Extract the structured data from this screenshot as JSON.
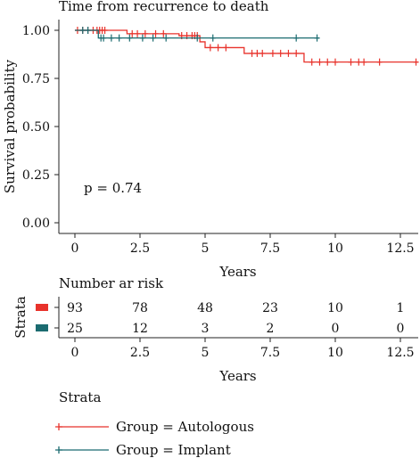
{
  "chart_data": {
    "type": "line",
    "title": "Time from recurrence to death",
    "xlabel": "Years",
    "ylabel": "Survival probability",
    "xlim": [
      -1.5,
      13.2
    ],
    "ylim": [
      -0.05,
      1.05
    ],
    "x_ticks": [
      "0",
      "2.5",
      "5",
      "7.5",
      "10",
      "12.5"
    ],
    "y_ticks": [
      "0.00",
      "0.25",
      "0.50",
      "0.75",
      "1.00"
    ],
    "pvalue_text": "p = 0.74",
    "series": [
      {
        "name": "Group = Autologous",
        "color": "#e8322b",
        "steps": [
          [
            0,
            1.0
          ],
          [
            2.0,
            0.982
          ],
          [
            4.0,
            0.972
          ],
          [
            4.8,
            0.94
          ],
          [
            5.0,
            0.91
          ],
          [
            6.5,
            0.88
          ],
          [
            8.8,
            0.835
          ],
          [
            13.2,
            0.835
          ]
        ],
        "censor_times": [
          0.1,
          0.3,
          0.5,
          0.7,
          0.85,
          0.95,
          1.05,
          1.15,
          2.2,
          2.4,
          2.7,
          3.1,
          3.4,
          4.1,
          4.3,
          4.5,
          4.6,
          4.7,
          5.2,
          5.5,
          5.8,
          6.8,
          7.0,
          7.2,
          7.6,
          7.9,
          8.2,
          8.5,
          9.1,
          9.4,
          9.7,
          10.0,
          10.6,
          10.9,
          11.1,
          11.7,
          13.1
        ]
      },
      {
        "name": "Group = Implant",
        "color": "#1b6b70",
        "steps": [
          [
            0,
            1.0
          ],
          [
            0.9,
            0.96
          ],
          [
            9.4,
            0.96
          ]
        ],
        "censor_times": [
          0.3,
          0.5,
          1.0,
          1.1,
          1.4,
          1.7,
          2.1,
          2.6,
          3.0,
          3.5,
          4.7,
          5.3,
          8.5,
          9.3
        ]
      }
    ],
    "risk_table": {
      "title": "Number ar risk",
      "xlabel": "Years",
      "ylabel": "Strata",
      "times": [
        "0",
        "2.5",
        "5",
        "7.5",
        "10",
        "12.5"
      ],
      "rows": [
        {
          "counts": [
            "93",
            "78",
            "48",
            "23",
            "10",
            "1"
          ],
          "color": "#e8322b"
        },
        {
          "counts": [
            "25",
            "12",
            "3",
            "2",
            "0",
            "0"
          ],
          "color": "#1b6b70"
        }
      ]
    },
    "legend": {
      "title": "Strata",
      "position": "bottom",
      "entries": [
        "Group = Autologous",
        "Group = Implant"
      ]
    }
  }
}
